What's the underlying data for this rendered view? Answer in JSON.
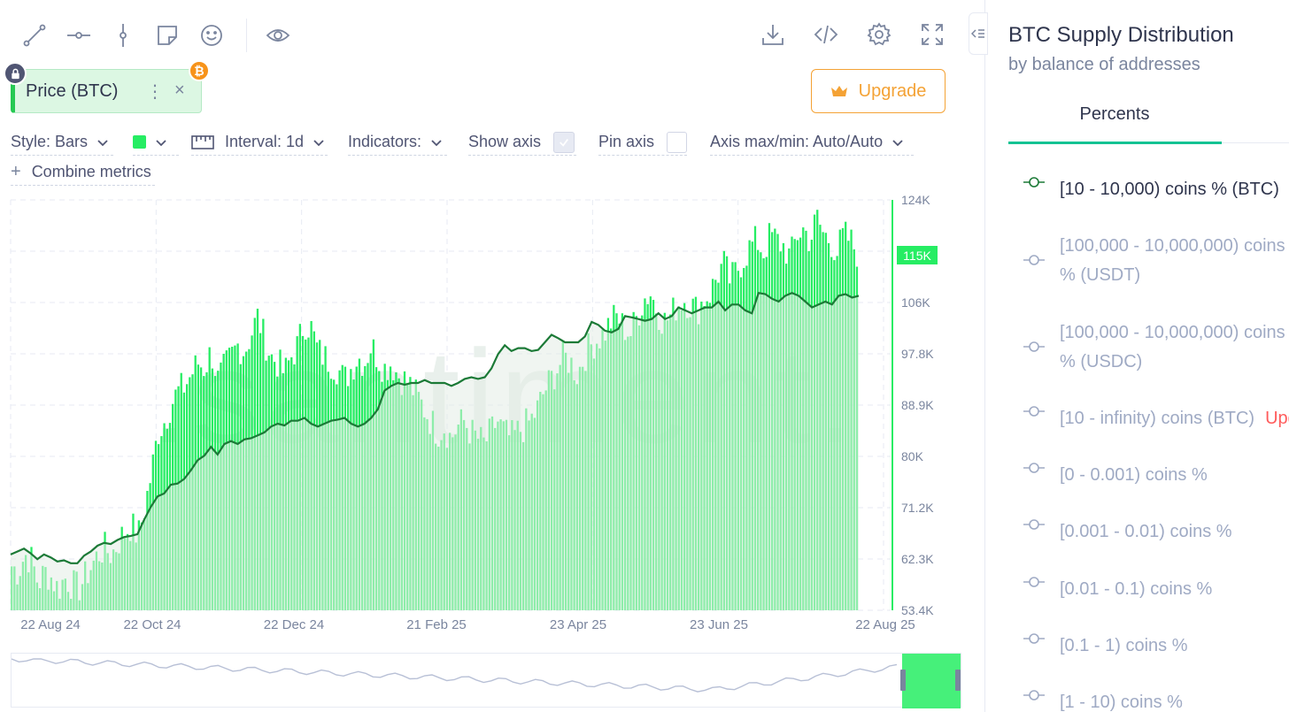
{
  "toolbar": {
    "left_tools": [
      "line-tool-icon",
      "horizontal-ray-icon",
      "vertical-line-icon",
      "note-icon",
      "emoji-icon"
    ],
    "visibility": "eye-icon",
    "right_tools": [
      "download-icon",
      "embed-code-icon",
      "settings-gear-icon",
      "fullscreen-icon"
    ]
  },
  "metric_chip": {
    "label": "Price (BTC)",
    "more": "⋮",
    "close": "×",
    "badge": "₿"
  },
  "upgrade": {
    "label": "Upgrade"
  },
  "settings": {
    "style": "Style: Bars",
    "interval": "Interval: 1d",
    "indicators": "Indicators:",
    "show_axis": "Show axis",
    "show_axis_checked": true,
    "pin_axis": "Pin axis",
    "pin_axis_checked": false,
    "axis_range": "Axis max/min: Auto/Auto",
    "combine": "Combine metrics",
    "combine_icon": "+"
  },
  "colors": {
    "bars": "#26ed63",
    "line": "#1c7a37",
    "accent": "#14c393",
    "upgrade": "#f4a235"
  },
  "watermark": ".santiment.",
  "chart_data": {
    "type": "bar",
    "x_ticks": [
      "22 Aug 24",
      "22 Oct 24",
      "22 Dec 24",
      "21 Feb 25",
      "23 Apr 25",
      "23 Jun 25",
      "22 Aug 25"
    ],
    "y_ticks": [
      "124K",
      "115K",
      "106K",
      "97.8K",
      "88.9K",
      "80K",
      "71.2K",
      "62.3K",
      "53.4K"
    ],
    "current_value_label": "115K",
    "y_range": [
      53.4,
      124
    ],
    "series": [
      {
        "name": "[10 - 10,000) coins % (BTC)",
        "style": "line",
        "values": [
          63.0,
          63.5,
          64.0,
          63.2,
          62.2,
          63.0,
          62.5,
          61.8,
          62.0,
          61.5,
          61.5,
          62.8,
          63.5,
          64.5,
          65.0,
          64.8,
          65.5,
          66.0,
          66.2,
          66.5,
          69.0,
          71.2,
          73.0,
          73.5,
          75.0,
          75.2,
          76.0,
          77.5,
          79.2,
          80.0,
          81.5,
          80.2,
          82.0,
          82.5,
          82.0,
          82.8,
          83.0,
          83.5,
          84.0,
          85.0,
          85.5,
          85.2,
          86.0,
          86.0,
          86.5,
          85.5,
          85.0,
          85.5,
          86.0,
          86.2,
          86.5,
          85.5,
          85.0,
          85.5,
          86.5,
          88.0,
          91.2,
          92.0,
          92.5,
          92.2,
          92.5,
          92.5,
          93.0,
          92.5,
          92.5,
          92.5,
          92.0,
          92.5,
          93.2,
          93.5,
          93.2,
          93.5,
          95.0,
          97.5,
          99.0,
          98.0,
          98.5,
          98.5,
          98.0,
          98.2,
          99.5,
          100.8,
          100.2,
          99.5,
          99.5,
          99.5,
          100.5,
          103.0,
          102.5,
          101.5,
          101.2,
          101.8,
          104.0,
          103.8,
          103.5,
          103.2,
          103.5,
          104.5,
          103.5,
          104.0,
          105.5,
          105.0,
          104.5,
          105.0,
          105.5,
          105.5,
          106.5,
          105.0,
          106.0,
          106.0,
          105.0,
          104.5,
          108.0,
          107.8,
          107.0,
          106.5,
          107.5,
          108.0,
          107.5,
          106.5,
          105.5,
          106.0,
          106.5,
          106.0,
          107.5,
          107.8,
          107.2,
          107.5
        ]
      }
    ],
    "bars_note": "green bars follow the BTC price",
    "bar_values": [
      61,
      60,
      63,
      62,
      58,
      60,
      59,
      57,
      59,
      58,
      57,
      59,
      61,
      63,
      64,
      63,
      65,
      67,
      68,
      66,
      71,
      77,
      84,
      86,
      89,
      91,
      92,
      94,
      96,
      95,
      98,
      93,
      95,
      97,
      99,
      98,
      101,
      104,
      100,
      97,
      96,
      94,
      97,
      99,
      103,
      102,
      98,
      97,
      96,
      95,
      93,
      95,
      97,
      96,
      99,
      97,
      95,
      96,
      94,
      93,
      92,
      90,
      88,
      86,
      84,
      85,
      83,
      85,
      86,
      84,
      83,
      82,
      84,
      86,
      84,
      83,
      84,
      85,
      86,
      88,
      91,
      93,
      95,
      97,
      96,
      94,
      97,
      99,
      100,
      101,
      103,
      104,
      102,
      101,
      104,
      107,
      108,
      105,
      103,
      104,
      106,
      107,
      106,
      105,
      107,
      108,
      111,
      113,
      110,
      112,
      114,
      116,
      117,
      115,
      118,
      117,
      116,
      114,
      118,
      119,
      117,
      121,
      118,
      117,
      115,
      118,
      117,
      115
    ],
    "ylabel": "",
    "xlabel": ""
  },
  "panel": {
    "title": "BTC Supply Distribution",
    "subtitle": "by balance of addresses",
    "tab": "Percents",
    "metrics": [
      {
        "label": "[10 - 10,000) coins % (BTC)",
        "active": true
      },
      {
        "label": "[100,000 - 10,000,000) coins",
        "label2": "% (USDT)",
        "active": false
      },
      {
        "label": "[100,000 - 10,000,000) coins",
        "label2": "% (USDC)",
        "active": false
      },
      {
        "label": "[10 - infinity) coins (BTC)",
        "badge": "Upgrade",
        "active": false
      },
      {
        "label": "[0 - 0.001) coins %",
        "active": false
      },
      {
        "label": "[0.001 - 0.01) coins %",
        "active": false
      },
      {
        "label": "[0.01 - 0.1) coins %",
        "active": false
      },
      {
        "label": "[0.1 - 1) coins %",
        "active": false
      },
      {
        "label": "[1 - 10) coins %",
        "active": false
      }
    ]
  }
}
